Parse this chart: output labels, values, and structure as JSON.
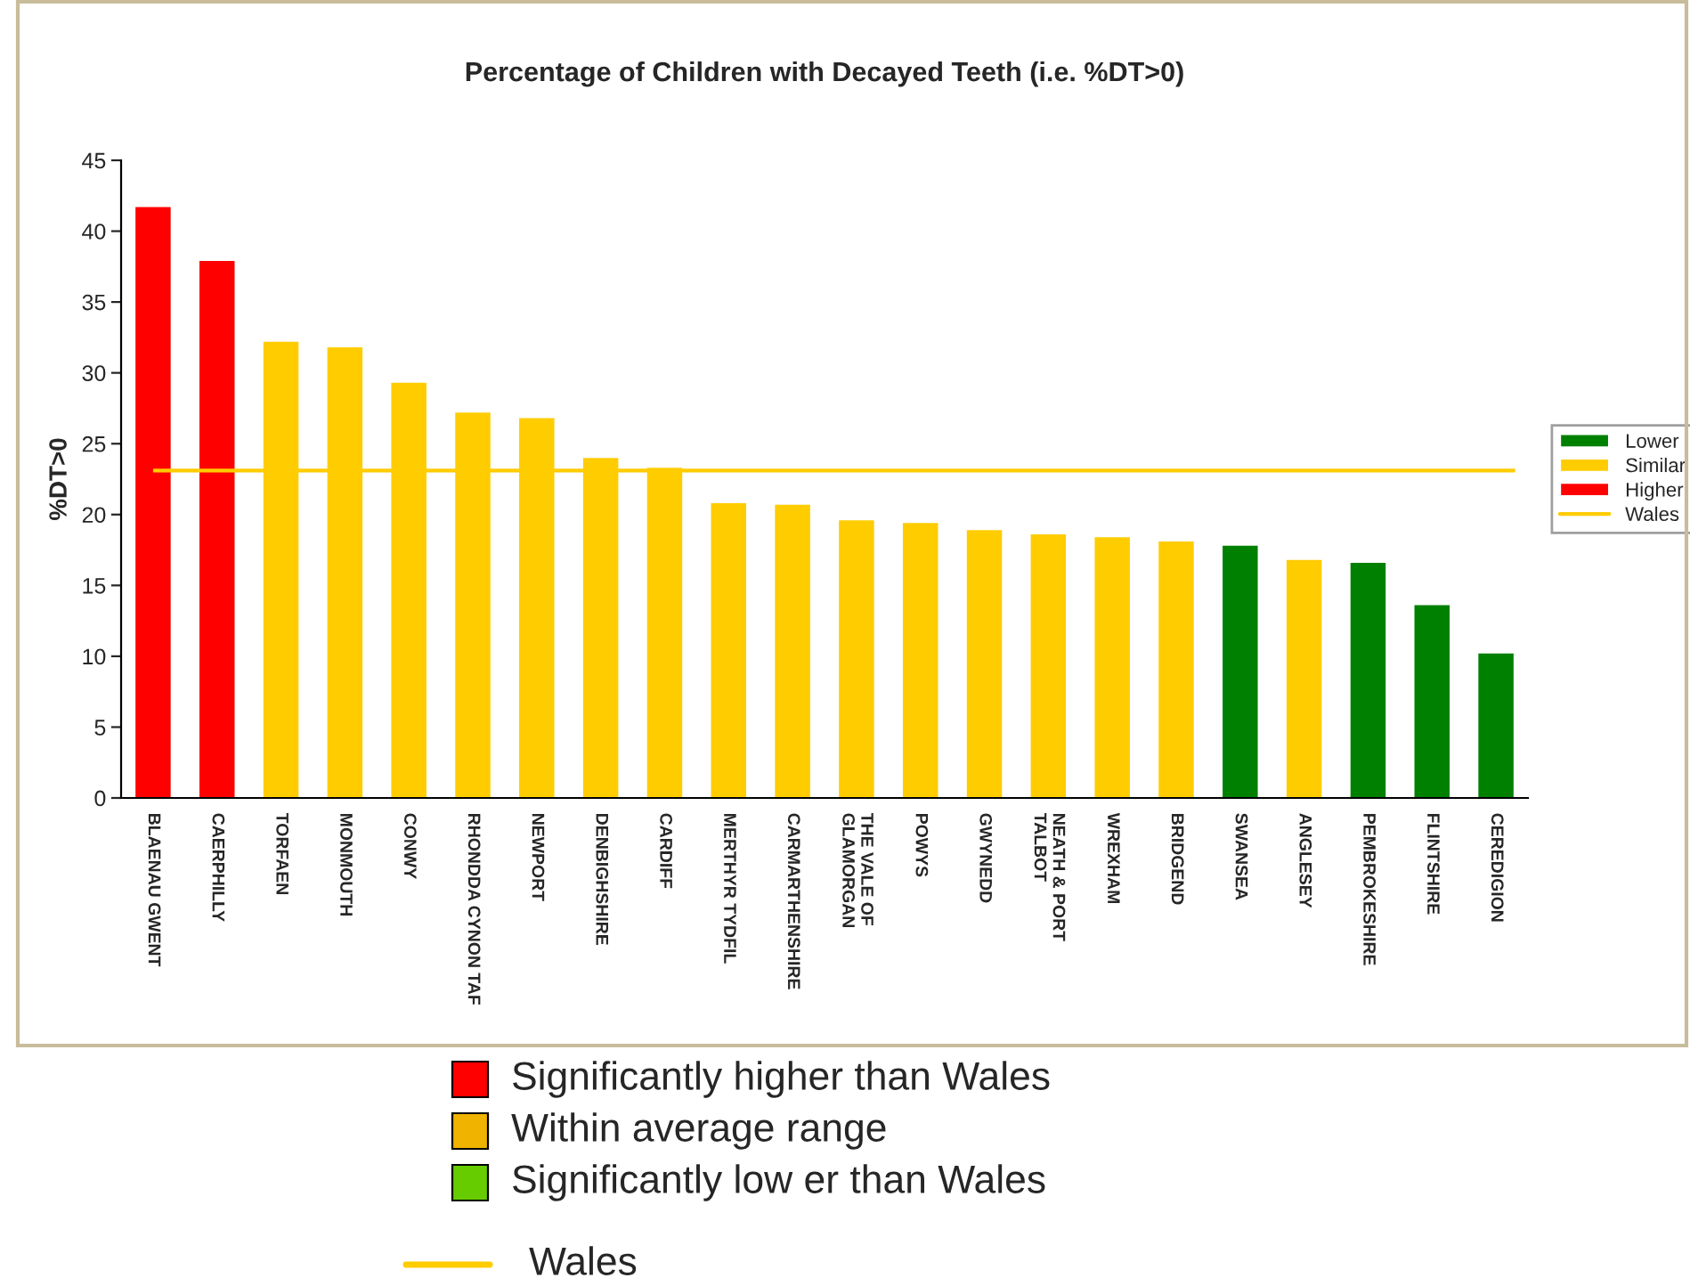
{
  "chart_data": {
    "type": "bar",
    "title": "Percentage of Children with Decayed Teeth (i.e. %DT>0)",
    "ylabel": "%DT>0",
    "categories": [
      "BLAENAU GWENT",
      "CAERPHILLY",
      "TORFAEN",
      "MONMOUTH",
      "CONWY",
      "RHONDDA CYNON TAF",
      "NEWPORT",
      "DENBIGHSHIRE",
      "CARDIFF",
      "MERTHYR TYDFIL",
      "CARMARTHENSHIRE",
      "THE VALE OF\nGLAMORGAN",
      "POWYS",
      "GWYNEDD",
      "NEATH & PORT\nTALBOT",
      "WREXHAM",
      "BRIDGEND",
      "SWANSEA",
      "ANGLESEY",
      "PEMBROKESHIRE",
      "FLINTSHIRE",
      "CEREDIGION"
    ],
    "series": [
      {
        "name": "Lower",
        "color": "#008000",
        "values": [
          null,
          null,
          null,
          null,
          null,
          null,
          null,
          null,
          null,
          null,
          null,
          null,
          null,
          null,
          null,
          null,
          null,
          17.8,
          null,
          16.6,
          13.6,
          10.2
        ]
      },
      {
        "name": "Similar",
        "color": "#ffcc00",
        "values": [
          null,
          null,
          32.2,
          31.8,
          29.3,
          27.2,
          26.8,
          24.0,
          23.3,
          20.8,
          20.7,
          19.6,
          19.4,
          18.9,
          18.6,
          18.4,
          18.1,
          null,
          16.8,
          null,
          null,
          null
        ]
      },
      {
        "name": "Higher",
        "color": "#ff0000",
        "values": [
          41.7,
          37.9,
          null,
          null,
          null,
          null,
          null,
          null,
          null,
          null,
          null,
          null,
          null,
          null,
          null,
          null,
          null,
          null,
          null,
          null,
          null,
          null
        ]
      }
    ],
    "ref_lines": [
      {
        "axis": "y",
        "value": 23.1,
        "label": "Wales",
        "color": "#ffcc00"
      }
    ],
    "ylim": [
      0,
      45
    ],
    "yticks": [
      0,
      5,
      10,
      15,
      20,
      25,
      30,
      35,
      40,
      45
    ],
    "grid": false,
    "legend": "right",
    "annotations": [
      "Significantly higher than Wales",
      "Within average range",
      "Significantly low er than Wales",
      "Wales"
    ]
  }
}
